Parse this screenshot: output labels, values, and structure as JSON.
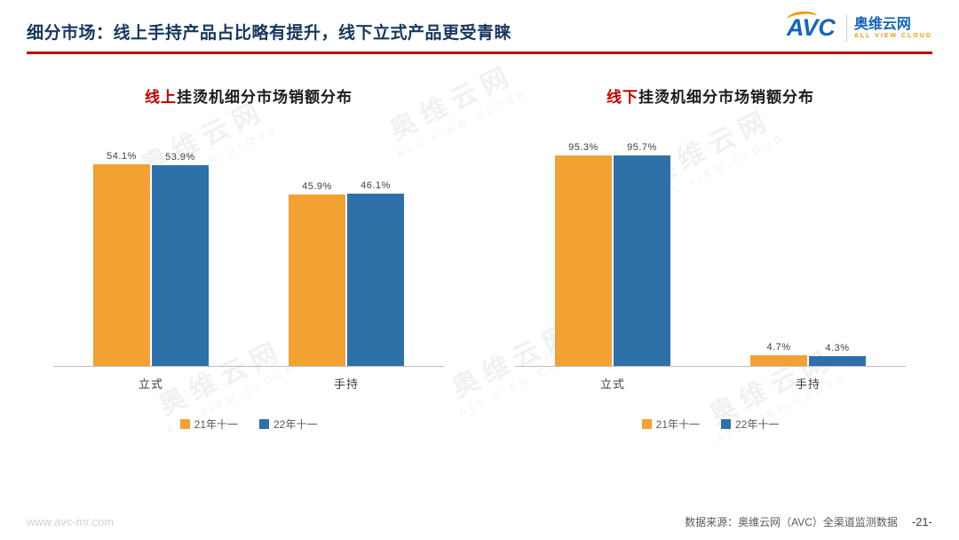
{
  "header": {
    "title": "细分市场：线上手持产品占比略有提升，线下立式产品更受青睐",
    "logo": {
      "avc": "AVC",
      "name": "奥维云网",
      "tagline": "ALL VIEW CLOUD"
    }
  },
  "watermark": {
    "line1": "奥维云网",
    "line2": "ALL VIEW CLOUD"
  },
  "colors": {
    "accent_red": "#C00000",
    "title_navy": "#17375E",
    "series_orange": "#F2A132",
    "series_blue": "#2E71A8"
  },
  "chart_data": [
    {
      "type": "bar",
      "title_prefix": "线上",
      "title_rest": "挂烫机细分市场销额分布",
      "categories": [
        "立式",
        "手持"
      ],
      "series": [
        {
          "name": "21年十一",
          "color": "#F2A132",
          "values": [
            54.1,
            45.9
          ]
        },
        {
          "name": "22年十一",
          "color": "#2E71A8",
          "values": [
            53.9,
            46.1
          ]
        }
      ],
      "ylim": [
        0,
        60
      ],
      "value_suffix": "%",
      "grid": false,
      "legend_position": "bottom"
    },
    {
      "type": "bar",
      "title_prefix": "线下",
      "title_rest": "挂烫机细分市场销额分布",
      "categories": [
        "立式",
        "手持"
      ],
      "series": [
        {
          "name": "21年十一",
          "color": "#F2A132",
          "values": [
            95.3,
            4.7
          ]
        },
        {
          "name": "22年十一",
          "color": "#2E71A8",
          "values": [
            95.7,
            4.3
          ]
        }
      ],
      "ylim": [
        0,
        100
      ],
      "value_suffix": "%",
      "grid": false,
      "legend_position": "bottom"
    }
  ],
  "footer": {
    "website": "www.avc-mr.com",
    "source": "数据来源：奥维云网（AVC）全渠道监测数据",
    "page": "-21-"
  }
}
